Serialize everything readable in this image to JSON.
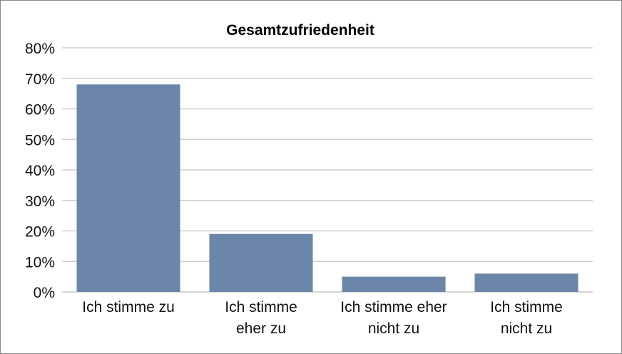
{
  "chart_data": {
    "type": "bar",
    "title": "Gesamtzufriedenheit",
    "categories": [
      [
        "Ich stimme zu"
      ],
      [
        "Ich stimme",
        "eher zu"
      ],
      [
        "Ich stimme eher",
        "nicht zu"
      ],
      [
        "Ich stimme",
        "nicht zu"
      ]
    ],
    "values": [
      68,
      19,
      5,
      6
    ],
    "value_unit": "%",
    "ylim": [
      0,
      80
    ],
    "y_ticks": [
      "0%",
      "10%",
      "20%",
      "30%",
      "40%",
      "50%",
      "60%",
      "70%",
      "80%"
    ],
    "grid": true,
    "bar_color": "#6c86aa",
    "grid_color": "#cfcfcf"
  }
}
